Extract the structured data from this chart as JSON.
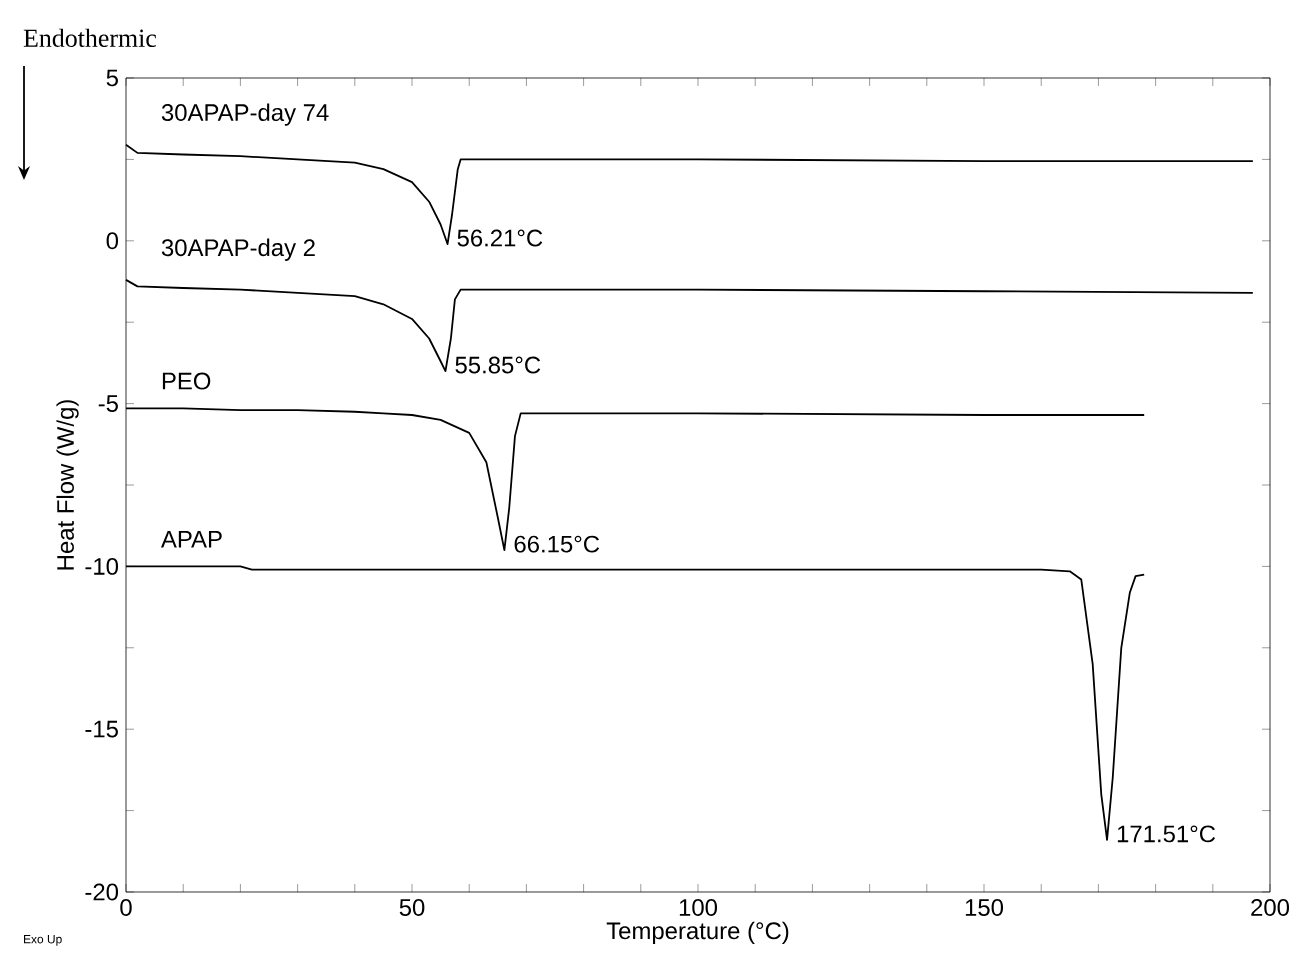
{
  "chart_data": {
    "type": "line",
    "xlabel": "Temperature (°C)",
    "ylabel": "Heat Flow (W/g)",
    "xlim": [
      0,
      200
    ],
    "ylim": [
      -20,
      5
    ],
    "xticks": [
      0,
      {
        "value": 10,
        "label": null
      },
      {
        "value": 20,
        "label": null
      },
      {
        "value": 30,
        "label": null
      },
      {
        "value": 40,
        "label": null
      },
      50,
      {
        "value": 60,
        "label": null
      },
      {
        "value": 70,
        "label": null
      },
      {
        "value": 80,
        "label": null
      },
      {
        "value": 90,
        "label": null
      },
      100,
      {
        "value": 110,
        "label": null
      },
      {
        "value": 120,
        "label": null
      },
      {
        "value": 130,
        "label": null
      },
      {
        "value": 140,
        "label": null
      },
      150,
      {
        "value": 160,
        "label": null
      },
      {
        "value": 170,
        "label": null
      },
      {
        "value": 180,
        "label": null
      },
      {
        "value": 190,
        "label": null
      },
      200
    ],
    "yticks": [
      -20,
      {
        "value": -17.5,
        "label": null
      },
      -15,
      {
        "value": -12.5,
        "label": null
      },
      -10,
      {
        "value": -7.5,
        "label": null
      },
      -5,
      {
        "value": -2.5,
        "label": null
      },
      0,
      {
        "value": 2.5,
        "label": null
      },
      5
    ],
    "grid": false,
    "marker": "none",
    "line_style": "solid",
    "series": [
      {
        "name": "30APAP-day 74",
        "color": "#000000",
        "x": [
          0,
          2,
          10,
          20,
          30,
          40,
          45,
          50,
          53,
          55,
          56.21,
          57,
          58,
          58.5,
          70,
          100,
          150,
          197
        ],
        "values": [
          2.95,
          2.7,
          2.65,
          2.6,
          2.5,
          2.4,
          2.2,
          1.8,
          1.2,
          0.5,
          -0.1,
          0.8,
          2.2,
          2.5,
          2.5,
          2.5,
          2.45,
          2.45
        ]
      },
      {
        "name": "30APAP-day 2",
        "color": "#000000",
        "x": [
          0,
          2,
          10,
          20,
          30,
          40,
          45,
          50,
          53,
          55,
          55.85,
          56.8,
          57.5,
          58.5,
          70,
          100,
          150,
          197
        ],
        "values": [
          -1.2,
          -1.4,
          -1.45,
          -1.5,
          -1.6,
          -1.7,
          -1.95,
          -2.4,
          -3.0,
          -3.7,
          -4.0,
          -3.0,
          -1.8,
          -1.5,
          -1.5,
          -1.5,
          -1.55,
          -1.6
        ]
      },
      {
        "name": "PEO",
        "color": "#000000",
        "x": [
          0,
          10,
          20,
          30,
          40,
          45,
          50,
          55,
          60,
          63,
          65,
          66.15,
          67,
          68,
          69,
          80,
          100,
          150,
          178
        ],
        "values": [
          -5.15,
          -5.15,
          -5.2,
          -5.2,
          -5.25,
          -5.3,
          -5.35,
          -5.5,
          -5.9,
          -6.8,
          -8.5,
          -9.5,
          -8.2,
          -6.0,
          -5.3,
          -5.3,
          -5.3,
          -5.35,
          -5.35
        ]
      },
      {
        "name": "APAP",
        "color": "#000000",
        "x": [
          0,
          20,
          22,
          100,
          160,
          165,
          167,
          169,
          170.5,
          171.51,
          172.5,
          174,
          175.5,
          176.5,
          178
        ],
        "values": [
          -10.0,
          -10.0,
          -10.1,
          -10.1,
          -10.1,
          -10.15,
          -10.4,
          -13.0,
          -17.0,
          -18.4,
          -16.5,
          -12.5,
          -10.8,
          -10.3,
          -10.25
        ]
      }
    ],
    "annotations": [
      "Endothermic",
      "Exo Up",
      {
        "text": "56.21°C",
        "x": 56.21,
        "y": -0.1
      },
      {
        "text": "55.85°C",
        "x": 55.85,
        "y": -4.0
      },
      {
        "text": "66.15°C",
        "x": 66.15,
        "y": -9.5
      },
      {
        "text": "171.51°C",
        "x": 171.51,
        "y": -18.4
      }
    ]
  }
}
